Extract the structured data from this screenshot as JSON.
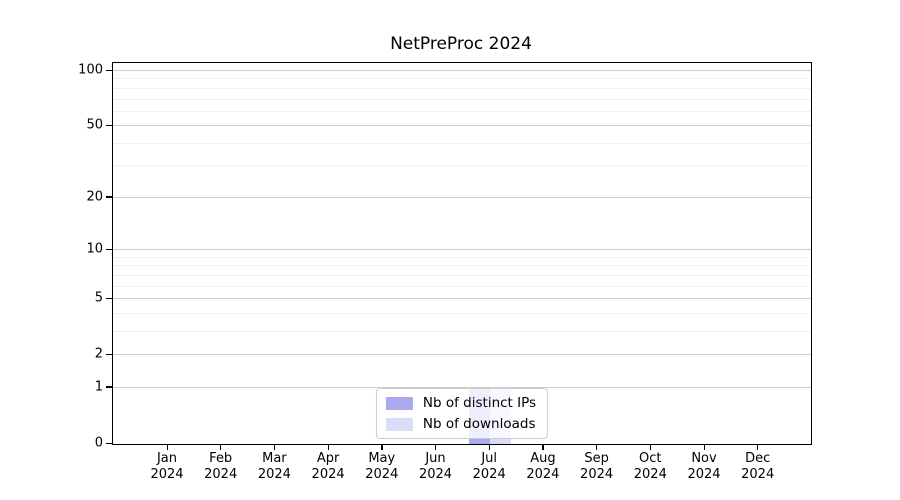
{
  "chart_data": {
    "type": "bar",
    "title": "NetPreProc 2024",
    "categories": [
      "Jan",
      "Feb",
      "Mar",
      "Apr",
      "May",
      "Jun",
      "Jul",
      "Aug",
      "Sep",
      "Oct",
      "Nov",
      "Dec"
    ],
    "category_year": "2024",
    "series": [
      {
        "name": "Nb of distinct IPs",
        "color": "#a9a9ee",
        "values": [
          0,
          0,
          0,
          0,
          0,
          0,
          1,
          0,
          0,
          0,
          0,
          0
        ]
      },
      {
        "name": "Nb of downloads",
        "color": "#dcdcf8",
        "values": [
          0,
          0,
          0,
          0,
          0,
          0,
          1,
          0,
          0,
          0,
          0,
          0
        ]
      }
    ],
    "yaxis": {
      "scale": "log1p",
      "major_ticks": [
        0,
        1,
        2,
        5,
        10,
        20,
        50,
        100
      ],
      "minor_gridlines": [
        3,
        4,
        6,
        7,
        8,
        9,
        30,
        40,
        60,
        70,
        80,
        90
      ],
      "max_value": 100
    },
    "grid": true,
    "legend_position": "lower center",
    "colors": {
      "grid_major": "#cccccc",
      "grid_minor": "#f0f0f0",
      "axis": "#000000",
      "legend_border": "#cccccc"
    }
  }
}
